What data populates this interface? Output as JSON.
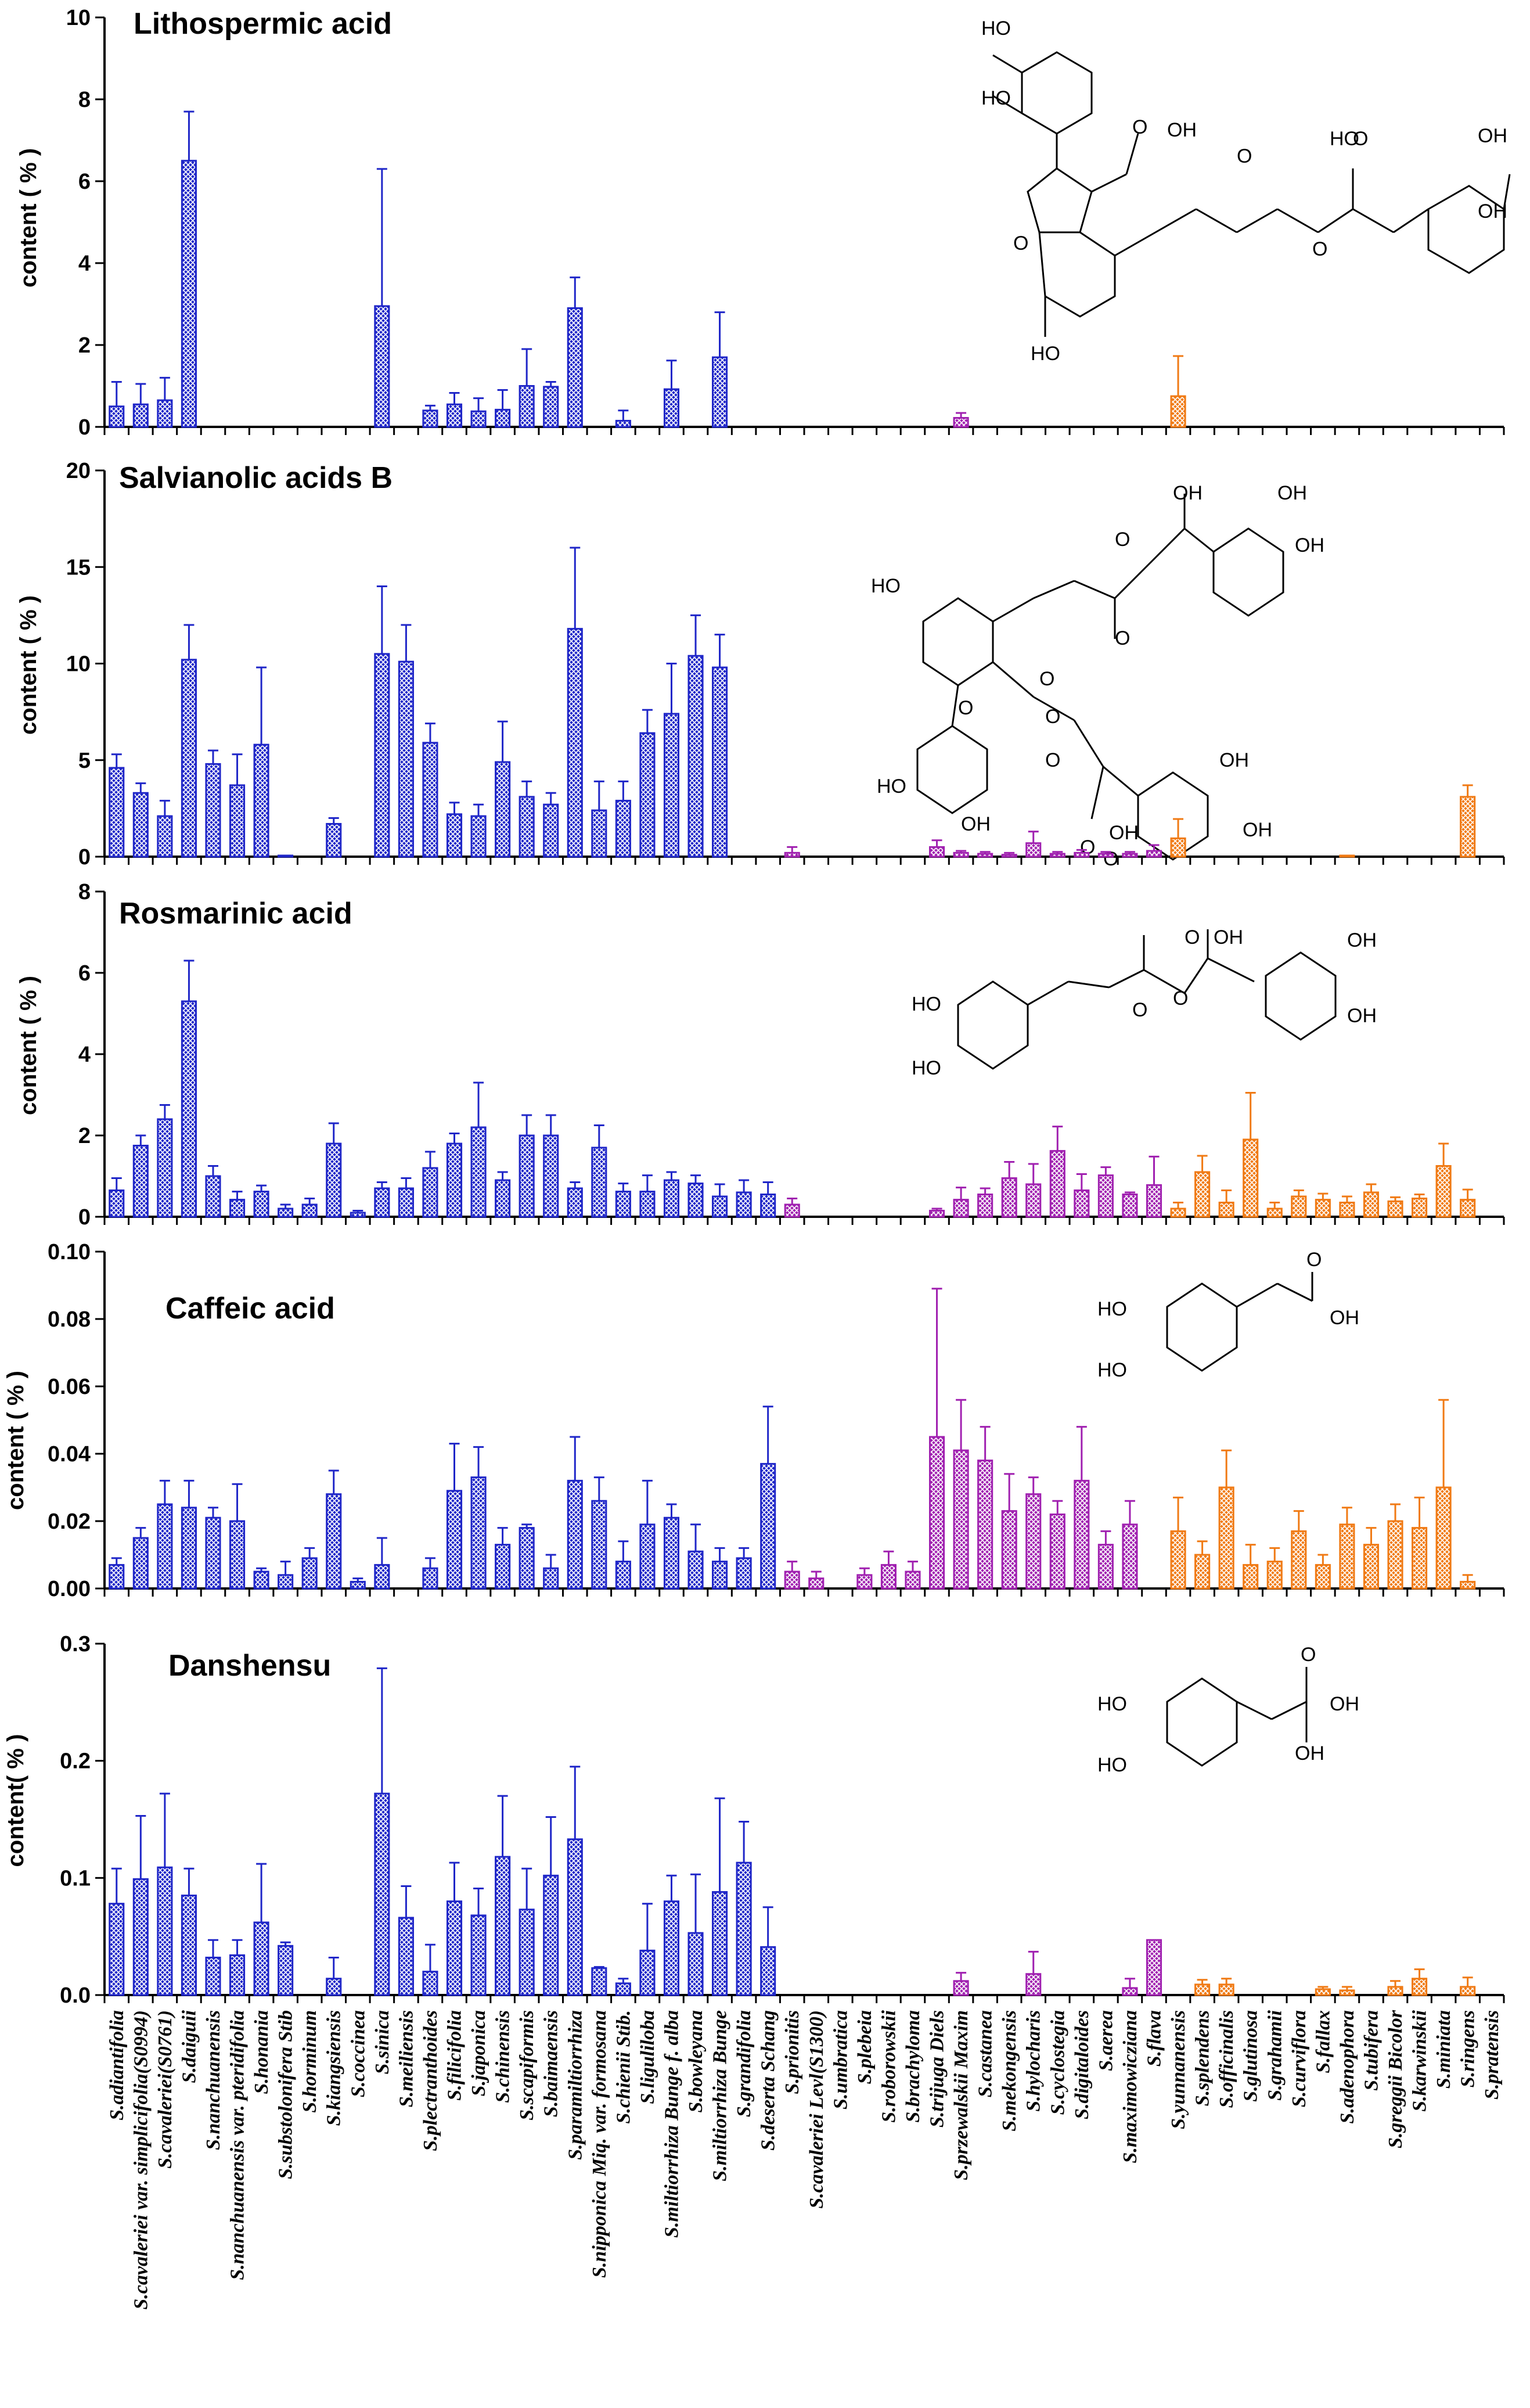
{
  "species": [
    "S.adiantifolia",
    "S.cavaleriei var. simplicifolia(S0994)",
    "S.cavaleriei(S0761)",
    "S.daiguii",
    "S.nanchuanensis",
    "S.nanchuanensis var. pteridifolia",
    "S.honania",
    "S.substolonifera Stib",
    "S.horminum",
    "S.kiangsiensis",
    "S.coccinea",
    "S.sinica",
    "S.meiliensis",
    "S.plectranthoides",
    "S.filicifolia",
    "S.japonica",
    "S.chinensis",
    "S.scapiformis",
    "S.baimaensis",
    "S.paramiltiorrhiza",
    "S.nipponica Miq. var. formosana",
    "S.chienii Stib.",
    "S.liguliloba",
    "S.miltiorrhiza Bunge f. alba",
    "S.bowleyana",
    "S.miltiorrhiza Bunge",
    "S.grandifolia",
    "S.deserta Schang",
    "S.prionitis",
    "S.cavaleriei Levl(S1300)",
    "S.umbratica",
    "S.plebeia",
    "S.roborowskii",
    "S.brachyloma",
    "S.trijuga Diels",
    "S.przewalskii Maxim",
    "S.castanea",
    "S.mekongensis",
    "S.hylocharis",
    "S.cyclostegia",
    "S.digitaloides",
    "S.aerea",
    "S.maximowicziana",
    "S.flava",
    "S.yunnanensis",
    "S.splendens",
    "S.officinalis",
    "S.glutinosa",
    "S.grahamii",
    "S.curviflora",
    "S.fallax",
    "S.adenophora",
    "S.tubifera",
    "S.greggii Bicolor",
    "S.karwinskii",
    "S.miniata",
    "S.ringens",
    "S.pratensis"
  ],
  "colors": {
    "blue": "#1f26c8",
    "purple": "#a020b0",
    "orange": "#f07a14"
  },
  "chart_data": [
    {
      "type": "bar",
      "title": "Lithospermic acid",
      "ylabel": "content ( % )",
      "ylim": [
        0,
        10
      ],
      "yticks": [
        "0",
        "2",
        "4",
        "6",
        "8",
        "10"
      ],
      "values": [
        0.5,
        0.55,
        0.65,
        6.5,
        0,
        0,
        0,
        0,
        0,
        0,
        0,
        2.95,
        0,
        0.4,
        0.55,
        0.38,
        0.42,
        1.0,
        0.98,
        2.9,
        0,
        0.15,
        0,
        0.92,
        0,
        1.7,
        0,
        0,
        0,
        0,
        0,
        0,
        0,
        0,
        0,
        0.22,
        0,
        0,
        0,
        0,
        0,
        0,
        0,
        0,
        0.75,
        0,
        0,
        0,
        0,
        0,
        0,
        0,
        0,
        0,
        0,
        0,
        0,
        0
      ],
      "errors": [
        0.6,
        0.5,
        0.55,
        1.2,
        0,
        0,
        0,
        0,
        0,
        0,
        0,
        3.35,
        0,
        0.12,
        0.28,
        0.32,
        0.48,
        0.9,
        0.12,
        0.75,
        0,
        0.25,
        0,
        0.7,
        0,
        1.1,
        0,
        0,
        0,
        0,
        0,
        0,
        0,
        0,
        0,
        0.12,
        0,
        0,
        0,
        0,
        0,
        0,
        0,
        0,
        0.98,
        0,
        0,
        0,
        0,
        0,
        0,
        0,
        0,
        0,
        0,
        0,
        0,
        0
      ],
      "structure_labels": [
        "HO",
        "HO",
        "O",
        "OH",
        "O",
        "O",
        "O",
        "HO",
        "O",
        "OH",
        "OH",
        "HO"
      ]
    },
    {
      "type": "bar",
      "title": "Salvianolic acids B",
      "ylabel": "content ( % )",
      "ylim": [
        0,
        20
      ],
      "yticks": [
        "0",
        "5",
        "10",
        "15",
        "20"
      ],
      "values": [
        4.6,
        3.3,
        2.1,
        10.2,
        4.8,
        3.7,
        5.8,
        0.05,
        0,
        1.7,
        0,
        10.5,
        10.1,
        5.9,
        2.2,
        2.1,
        4.9,
        3.1,
        2.7,
        11.8,
        2.4,
        2.9,
        6.4,
        7.4,
        10.4,
        9.8,
        0,
        0,
        0.2,
        0,
        0,
        0,
        0,
        0,
        0.5,
        0.2,
        0.15,
        0.1,
        0.7,
        0.15,
        0.2,
        0.15,
        0.15,
        0.3,
        0.95,
        0,
        0,
        0,
        0,
        0,
        0,
        0.05,
        0,
        0,
        0,
        0,
        3.1,
        0
      ],
      "errors": [
        0.7,
        0.5,
        0.8,
        1.8,
        0.7,
        1.6,
        4.0,
        0,
        0,
        0.3,
        0,
        3.5,
        1.9,
        1.0,
        0.6,
        0.6,
        2.1,
        0.8,
        0.6,
        4.2,
        1.5,
        1.0,
        1.2,
        2.6,
        2.1,
        1.7,
        0,
        0,
        0.3,
        0,
        0,
        0,
        0,
        0,
        0.35,
        0.1,
        0.1,
        0.1,
        0.6,
        0.1,
        0.15,
        0.1,
        0.1,
        0.3,
        1.0,
        0,
        0,
        0,
        0,
        0,
        0,
        0,
        0,
        0,
        0,
        0,
        0.6,
        0
      ],
      "structure_labels": [
        "O",
        "OH",
        "OH",
        "HO",
        "O",
        "OH",
        "O",
        "O",
        "O",
        "O",
        "OH",
        "O",
        "O",
        "OH",
        "OH",
        "HO",
        "OH"
      ]
    },
    {
      "type": "bar",
      "title": "Rosmarinic acid",
      "ylabel": "content ( % )",
      "ylim": [
        0,
        8
      ],
      "yticks": [
        "0",
        "2",
        "4",
        "6",
        "8"
      ],
      "values": [
        0.65,
        1.75,
        2.4,
        5.3,
        1.0,
        0.42,
        0.62,
        0.2,
        0.3,
        1.8,
        0.1,
        0.7,
        0.7,
        1.2,
        1.8,
        2.2,
        0.9,
        2.0,
        2.0,
        0.7,
        1.7,
        0.62,
        0.62,
        0.9,
        0.82,
        0.5,
        0.6,
        0.55,
        0.3,
        0,
        0,
        0,
        0,
        0,
        0.15,
        0.42,
        0.55,
        0.95,
        0.8,
        1.62,
        0.65,
        1.02,
        0.55,
        0.78,
        0.2,
        1.1,
        0.35,
        1.9,
        0.2,
        0.5,
        0.42,
        0.35,
        0.6,
        0.38,
        0.45,
        1.25,
        0.42,
        0
      ],
      "errors": [
        0.3,
        0.25,
        0.35,
        1.0,
        0.25,
        0.2,
        0.15,
        0.1,
        0.15,
        0.5,
        0.05,
        0.15,
        0.25,
        0.4,
        0.25,
        1.1,
        0.2,
        0.5,
        0.5,
        0.15,
        0.55,
        0.2,
        0.4,
        0.2,
        0.2,
        0.3,
        0.3,
        0.3,
        0.15,
        0,
        0,
        0,
        0,
        0,
        0.05,
        0.3,
        0.15,
        0.4,
        0.5,
        0.6,
        0.4,
        0.2,
        0.05,
        0.7,
        0.15,
        0.4,
        0.3,
        1.15,
        0.15,
        0.15,
        0.15,
        0.15,
        0.2,
        0.1,
        0.1,
        0.55,
        0.25,
        0
      ]
    },
    {
      "type": "bar",
      "title": "Caffeic acid",
      "ylabel": "content ( % )",
      "ylim": [
        0,
        0.1
      ],
      "yticks": [
        "0.00",
        "0.02",
        "0.04",
        "0.06",
        "0.08",
        "0.10"
      ],
      "values": [
        0.007,
        0.015,
        0.025,
        0.024,
        0.021,
        0.02,
        0.005,
        0.004,
        0.009,
        0.028,
        0.002,
        0.007,
        0,
        0.006,
        0.029,
        0.033,
        0.013,
        0.018,
        0.006,
        0.032,
        0.026,
        0.008,
        0.019,
        0.021,
        0.011,
        0.008,
        0.009,
        0.037,
        0.005,
        0.003,
        0,
        0.004,
        0.007,
        0.005,
        0.045,
        0.041,
        0.038,
        0.023,
        0.028,
        0.022,
        0.032,
        0.013,
        0.019,
        0,
        0.017,
        0.01,
        0.03,
        0.007,
        0.008,
        0.017,
        0.007,
        0.019,
        0.013,
        0.02,
        0.018,
        0.03,
        0.002,
        0
      ],
      "errors": [
        0.002,
        0.003,
        0.007,
        0.008,
        0.003,
        0.011,
        0.001,
        0.004,
        0.003,
        0.007,
        0.001,
        0.008,
        0,
        0.003,
        0.014,
        0.009,
        0.005,
        0.001,
        0.004,
        0.013,
        0.007,
        0.006,
        0.013,
        0.004,
        0.008,
        0.004,
        0.003,
        0.017,
        0.003,
        0.002,
        0,
        0.002,
        0.004,
        0.003,
        0.044,
        0.015,
        0.01,
        0.011,
        0.005,
        0.004,
        0.016,
        0.004,
        0.007,
        0,
        0.01,
        0.004,
        0.011,
        0.006,
        0.004,
        0.006,
        0.003,
        0.005,
        0.005,
        0.005,
        0.009,
        0.026,
        0.002,
        0
      ]
    },
    {
      "type": "bar",
      "title": "Danshensu",
      "ylabel": "content( % )",
      "ylim": [
        0,
        0.3
      ],
      "yticks": [
        "0.0",
        "0.1",
        "0.2",
        "0.3"
      ],
      "values": [
        0.078,
        0.099,
        0.109,
        0.085,
        0.032,
        0.034,
        0.062,
        0.042,
        0,
        0.014,
        0,
        0.172,
        0.066,
        0.02,
        0.08,
        0.068,
        0.118,
        0.073,
        0.102,
        0.133,
        0.023,
        0.01,
        0.038,
        0.08,
        0.053,
        0.088,
        0.113,
        0.041,
        0,
        0,
        0,
        0,
        0,
        0,
        0,
        0.012,
        0,
        0,
        0.018,
        0,
        0,
        0,
        0.006,
        0.047,
        0,
        0.009,
        0.009,
        0,
        0,
        0,
        0.005,
        0.004,
        0,
        0.007,
        0.014,
        0,
        0.007,
        0
      ],
      "errors": [
        0.03,
        0.054,
        0.063,
        0.023,
        0.015,
        0.013,
        0.05,
        0.003,
        0,
        0.018,
        0,
        0.107,
        0.027,
        0.023,
        0.033,
        0.023,
        0.052,
        0.035,
        0.05,
        0.062,
        0.001,
        0.004,
        0.04,
        0.022,
        0.05,
        0.08,
        0.035,
        0.034,
        0,
        0,
        0,
        0,
        0,
        0,
        0,
        0.007,
        0,
        0,
        0.019,
        0,
        0,
        0,
        0.008,
        0,
        0,
        0.004,
        0.005,
        0,
        0,
        0,
        0.002,
        0.003,
        0,
        0.005,
        0.008,
        0,
        0.008,
        0
      ]
    }
  ],
  "structure_label_sets": {
    "rosmarinic": [
      "O",
      "OH",
      "OH",
      "OH",
      "HO",
      "O",
      "HO",
      "O"
    ],
    "caffeic": [
      "O",
      "HO",
      "OH",
      "HO"
    ],
    "danshensu": [
      "O",
      "HO",
      "OH",
      "OH",
      "HO"
    ]
  }
}
